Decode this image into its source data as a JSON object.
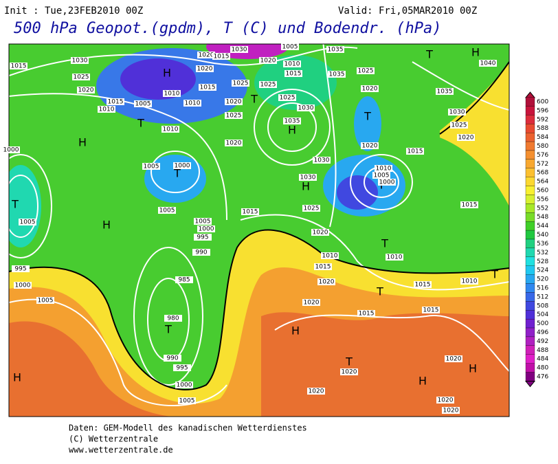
{
  "header": {
    "init": "Init : Tue,23FEB2010 00Z",
    "valid": "Valid: Fri,05MAR2010 00Z",
    "title": "500 hPa Geopot.(gpdm), T (C) und Bodendr. (hPa)"
  },
  "map": {
    "pressure_centers": [
      "H",
      "T",
      "H",
      "T",
      "H",
      "T",
      "T",
      "H",
      "H",
      "H",
      "T",
      "T",
      "H",
      "T",
      "H",
      "H",
      "T",
      "T",
      "T",
      "T",
      "T",
      "H"
    ],
    "isobars": [
      1030,
      1020,
      1015,
      1020,
      1005,
      1035,
      1040,
      1015,
      1030,
      1025,
      1020,
      1015,
      1010,
      1005,
      1010,
      1010,
      1015,
      1010,
      1025,
      1020,
      1025,
      1025,
      1020,
      1010,
      1015,
      1035,
      1025,
      1020,
      1030,
      1035,
      1025,
      1020,
      1030,
      1030,
      1025,
      1020,
      1035,
      1030,
      1025,
      1020,
      1015,
      1020,
      1010,
      1005,
      1000,
      1005,
      1000,
      1005,
      1005,
      1000,
      995,
      990,
      985,
      980,
      990,
      995,
      1000,
      1005,
      1015,
      1010,
      1015,
      1010,
      1020,
      1020,
      1015,
      1015,
      1010,
      1015,
      1020,
      1020,
      1020,
      1020,
      1020,
      1005,
      995,
      1000,
      1005,
      1015,
      1000
    ]
  },
  "colorbar": {
    "labels": [
      600,
      596,
      592,
      588,
      584,
      580,
      576,
      572,
      568,
      564,
      560,
      556,
      552,
      548,
      544,
      540,
      536,
      532,
      528,
      524,
      520,
      516,
      512,
      508,
      504,
      500,
      496,
      492,
      488,
      484,
      480,
      476
    ],
    "colors": [
      "#b0103a",
      "#c8143c",
      "#dc2c3c",
      "#e84a30",
      "#ec6230",
      "#f07a30",
      "#f49030",
      "#f8a830",
      "#fcc030",
      "#fcd830",
      "#f8f030",
      "#d8f030",
      "#a8e828",
      "#78dc28",
      "#40d028",
      "#20c840",
      "#20d080",
      "#20d8b0",
      "#20e0e0",
      "#20c8f0",
      "#28a8f0",
      "#3088f0",
      "#3868e8",
      "#4048e0",
      "#5030d8",
      "#7020d0",
      "#9020c8",
      "#b020c0",
      "#d020b8",
      "#e020c8",
      "#c010a8",
      "#800080"
    ]
  },
  "footer": {
    "line1": "Daten: GEM-Modell des kanadischen Wetterdienstes",
    "line2": "(C) Wetterzentrale",
    "line3": "www.wetterzentrale.de"
  }
}
